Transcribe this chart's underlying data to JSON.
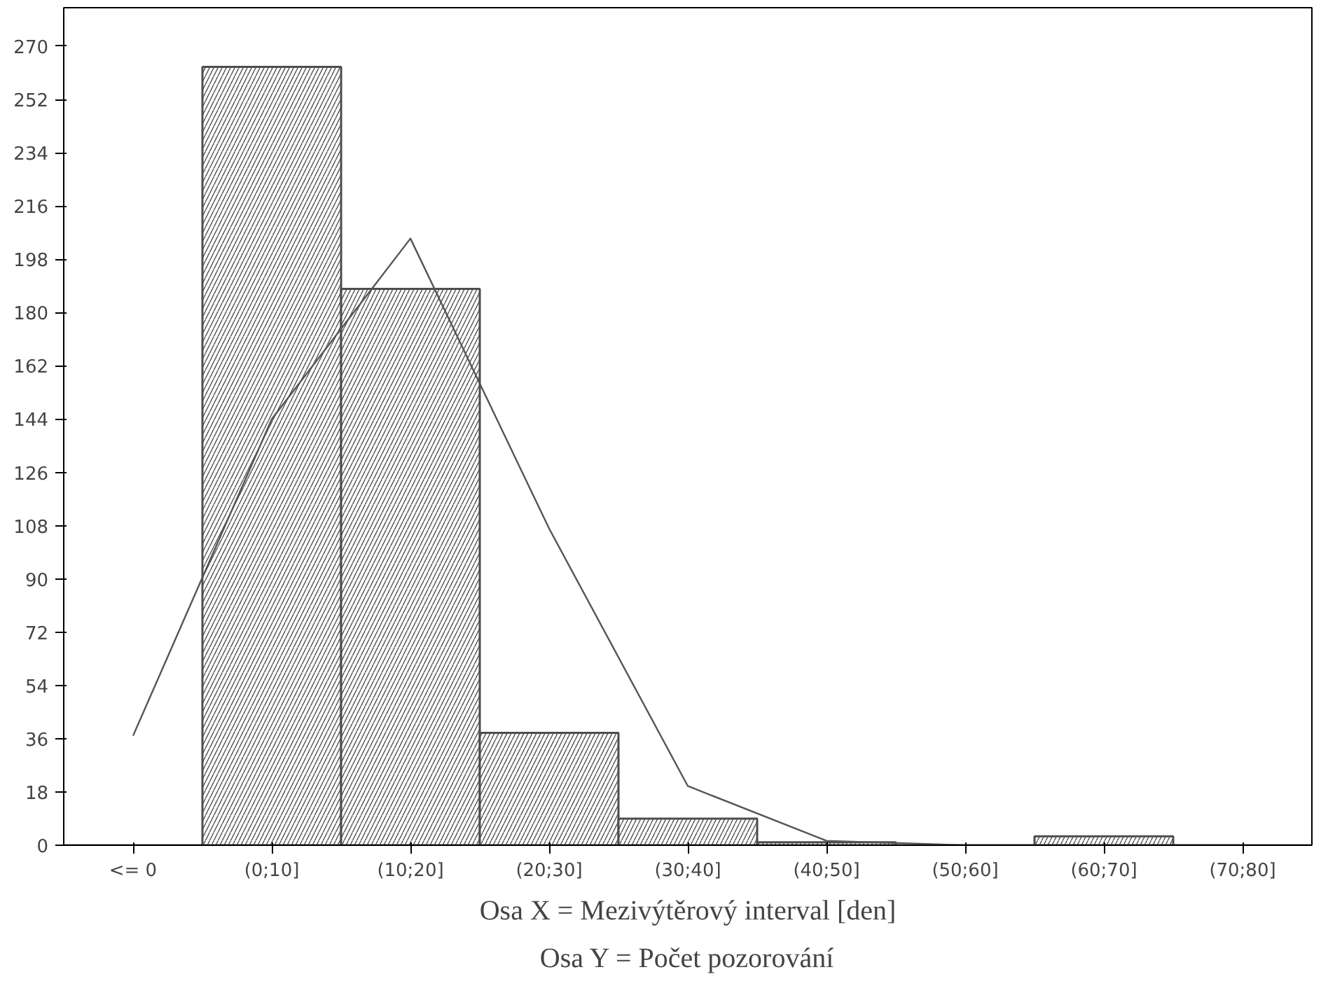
{
  "chart_data": {
    "type": "bar",
    "categories": [
      "<= 0",
      "(0;10]",
      "(10;20]",
      "(20;30]",
      "(30;40]",
      "(40;50]",
      "(50;60]",
      "(60;70]",
      "(70;80]"
    ],
    "values": [
      0,
      263,
      188,
      38,
      9,
      1,
      0,
      3,
      0
    ],
    "color": "#4d4d4d",
    "series": [
      {
        "type": "line",
        "color": "#555555",
        "values": [
          37,
          144,
          205,
          107,
          20,
          1.5,
          0,
          0,
          0
        ]
      }
    ],
    "ylim": [
      0,
      283
    ],
    "yticks": [
      0,
      18,
      36,
      54,
      72,
      90,
      108,
      126,
      144,
      162,
      180,
      198,
      216,
      234,
      252,
      270
    ],
    "annotations": [
      "Osa X = Mezivýtěrový interval [den]",
      "Osa Y = Počet pozorování"
    ],
    "grid": false
  }
}
